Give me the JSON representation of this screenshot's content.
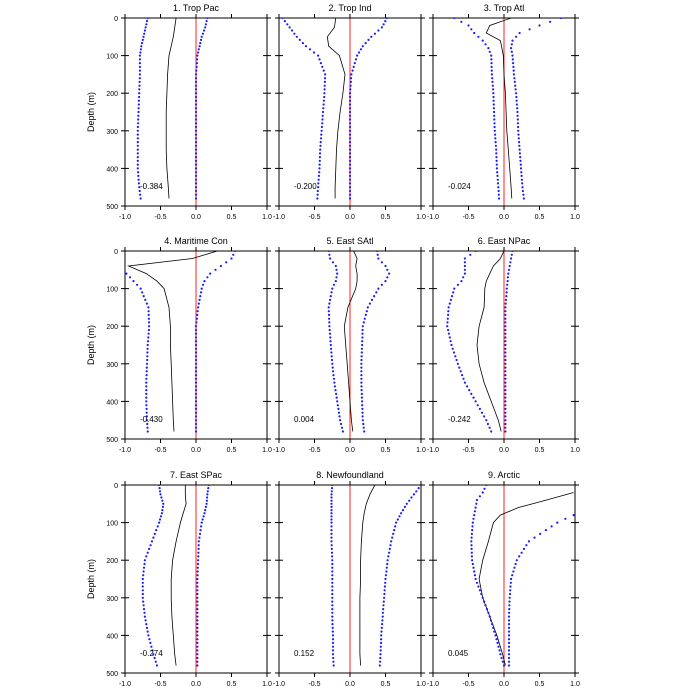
{
  "figure": {
    "ylabel": "Depth (m)",
    "xticks": [
      "-1.0",
      "-0.5",
      "0.0",
      "0.5",
      "1.0"
    ],
    "yticks": [
      "0",
      "100",
      "200",
      "300",
      "400",
      "500"
    ],
    "colors": {
      "mean_line": "#000000",
      "bounds_dots": "#1a1aff",
      "zero_line": "#ff2020"
    }
  },
  "chart_data": [
    {
      "type": "line",
      "title": "1. Trop Pac",
      "value_label": "-0.384",
      "xlim": [
        -1,
        1
      ],
      "ylim": [
        500,
        0
      ],
      "depth": [
        0,
        25,
        50,
        75,
        100,
        150,
        200,
        250,
        300,
        350,
        400,
        450,
        480
      ],
      "mean": [
        -0.28,
        -0.3,
        -0.32,
        -0.35,
        -0.38,
        -0.4,
        -0.41,
        -0.42,
        -0.42,
        -0.42,
        -0.41,
        -0.39,
        -0.38
      ],
      "lower": [
        -0.68,
        -0.71,
        -0.74,
        -0.77,
        -0.79,
        -0.79,
        -0.8,
        -0.81,
        -0.82,
        -0.82,
        -0.82,
        -0.8,
        -0.78
      ],
      "upper": [
        0.16,
        0.13,
        0.08,
        0.05,
        0.02,
        0.0,
        0.0,
        0.0,
        0.0,
        0.0,
        0.0,
        0.0,
        0.0
      ]
    },
    {
      "type": "line",
      "title": "2. Trop Ind",
      "value_label": "-0.200",
      "xlim": [
        -1,
        1
      ],
      "ylim": [
        500,
        0
      ],
      "depth": [
        0,
        25,
        50,
        75,
        100,
        150,
        200,
        250,
        300,
        350,
        400,
        450,
        480
      ],
      "mean": [
        -0.2,
        -0.22,
        -0.32,
        -0.3,
        -0.15,
        -0.07,
        -0.1,
        -0.14,
        -0.17,
        -0.19,
        -0.2,
        -0.21,
        -0.21
      ],
      "lower": [
        -0.95,
        -0.85,
        -0.75,
        -0.62,
        -0.45,
        -0.35,
        -0.36,
        -0.38,
        -0.4,
        -0.42,
        -0.43,
        -0.45,
        -0.46
      ],
      "upper": [
        0.52,
        0.45,
        0.3,
        0.18,
        0.1,
        0.02,
        0.0,
        0.0,
        0.0,
        0.0,
        0.0,
        0.0,
        0.0
      ]
    },
    {
      "type": "line",
      "title": "3. Trop Atl",
      "value_label": "-0.024",
      "xlim": [
        -1,
        1
      ],
      "ylim": [
        500,
        0
      ],
      "depth": [
        0,
        20,
        40,
        60,
        80,
        100,
        150,
        200,
        250,
        300,
        350,
        400,
        450,
        480
      ],
      "mean": [
        0.1,
        -0.2,
        -0.25,
        -0.05,
        -0.03,
        -0.01,
        0.0,
        0.02,
        0.03,
        0.04,
        0.06,
        0.08,
        0.1,
        0.11
      ],
      "lower": [
        -0.7,
        -0.5,
        -0.42,
        -0.3,
        -0.22,
        -0.18,
        -0.17,
        -0.15,
        -0.14,
        -0.13,
        -0.11,
        -0.1,
        -0.08,
        -0.07
      ],
      "upper": [
        0.8,
        0.5,
        0.22,
        0.12,
        0.1,
        0.12,
        0.14,
        0.17,
        0.19,
        0.2,
        0.22,
        0.24,
        0.26,
        0.28
      ]
    },
    {
      "type": "line",
      "title": "4. Maritime Con",
      "value_label": "-0.430",
      "xlim": [
        -1,
        1
      ],
      "ylim": [
        500,
        0
      ],
      "depth": [
        0,
        20,
        40,
        60,
        80,
        100,
        150,
        200,
        250,
        300,
        350,
        400,
        450,
        480
      ],
      "mean": [
        0.3,
        -0.05,
        -0.95,
        -0.7,
        -0.55,
        -0.45,
        -0.38,
        -0.36,
        -0.36,
        -0.35,
        -0.34,
        -0.33,
        -0.32,
        -0.31
      ],
      "lower": [
        null,
        null,
        null,
        -0.98,
        -0.88,
        -0.78,
        -0.67,
        -0.66,
        -0.68,
        -0.69,
        -0.7,
        -0.7,
        -0.69,
        -0.68
      ],
      "upper": [
        0.55,
        0.5,
        0.35,
        0.2,
        0.12,
        0.08,
        0.03,
        0.0,
        0.0,
        0.0,
        0.0,
        0.0,
        0.0,
        0.0
      ]
    },
    {
      "type": "line",
      "title": "5. East SAtl",
      "value_label": "0.004",
      "xlim": [
        -1,
        1
      ],
      "ylim": [
        500,
        0
      ],
      "depth": [
        0,
        20,
        40,
        60,
        80,
        100,
        150,
        200,
        250,
        300,
        350,
        400,
        450,
        480
      ],
      "mean": [
        0.05,
        0.1,
        0.08,
        0.1,
        0.1,
        0.08,
        -0.03,
        -0.08,
        -0.06,
        -0.04,
        -0.02,
        0.0,
        0.02,
        0.04
      ],
      "lower": [
        -0.3,
        -0.28,
        -0.2,
        -0.18,
        -0.2,
        -0.25,
        -0.3,
        -0.29,
        -0.27,
        -0.25,
        -0.22,
        -0.18,
        -0.14,
        -0.1
      ],
      "upper": [
        0.38,
        0.4,
        0.5,
        0.55,
        0.5,
        0.4,
        0.25,
        0.18,
        0.17,
        0.16,
        0.16,
        0.17,
        0.18,
        0.2
      ]
    },
    {
      "type": "line",
      "title": "6. East NPac",
      "value_label": "-0.242",
      "xlim": [
        -1,
        1
      ],
      "ylim": [
        500,
        0
      ],
      "depth": [
        0,
        20,
        40,
        60,
        80,
        100,
        150,
        200,
        250,
        300,
        350,
        400,
        450,
        480
      ],
      "mean": [
        0.0,
        -0.05,
        -0.15,
        -0.2,
        -0.25,
        -0.27,
        -0.28,
        -0.35,
        -0.38,
        -0.35,
        -0.28,
        -0.18,
        -0.08,
        -0.04
      ],
      "lower": [
        -0.4,
        -0.55,
        -0.55,
        -0.55,
        -0.6,
        -0.7,
        -0.78,
        -0.8,
        -0.74,
        -0.65,
        -0.55,
        -0.4,
        -0.25,
        -0.18
      ],
      "upper": [
        0.12,
        0.1,
        0.08,
        0.06,
        0.05,
        0.04,
        0.02,
        0.02,
        0.02,
        0.02,
        0.02,
        0.02,
        0.02,
        0.02
      ]
    },
    {
      "type": "line",
      "title": "7. East SPac",
      "value_label": "-0.274",
      "xlim": [
        -1,
        1
      ],
      "ylim": [
        500,
        0
      ],
      "depth": [
        0,
        25,
        50,
        75,
        100,
        150,
        200,
        250,
        300,
        350,
        400,
        450,
        480
      ],
      "mean": [
        -0.15,
        -0.15,
        -0.14,
        -0.18,
        -0.22,
        -0.28,
        -0.33,
        -0.35,
        -0.35,
        -0.34,
        -0.32,
        -0.3,
        -0.28
      ],
      "lower": [
        -0.52,
        -0.5,
        -0.46,
        -0.48,
        -0.52,
        -0.62,
        -0.72,
        -0.75,
        -0.75,
        -0.72,
        -0.67,
        -0.6,
        -0.55
      ],
      "upper": [
        0.18,
        0.16,
        0.15,
        0.12,
        0.08,
        0.04,
        0.03,
        0.02,
        0.02,
        0.02,
        0.02,
        0.02,
        0.02
      ]
    },
    {
      "type": "line",
      "title": "8. Newfoundland",
      "value_label": "0.152",
      "xlim": [
        -1,
        1
      ],
      "ylim": [
        500,
        0
      ],
      "depth": [
        0,
        25,
        50,
        75,
        100,
        150,
        200,
        250,
        300,
        350,
        400,
        450,
        480
      ],
      "mean": [
        0.35,
        0.28,
        0.23,
        0.2,
        0.18,
        0.16,
        0.15,
        0.15,
        0.14,
        0.14,
        0.14,
        0.14,
        0.15
      ],
      "lower": [
        -0.25,
        -0.26,
        -0.26,
        -0.26,
        -0.26,
        -0.26,
        -0.25,
        -0.25,
        -0.25,
        -0.25,
        -0.24,
        -0.24,
        -0.23
      ],
      "upper": [
        1.0,
        0.9,
        0.8,
        0.72,
        0.65,
        0.58,
        0.53,
        0.5,
        0.48,
        0.46,
        0.44,
        0.43,
        0.42
      ]
    },
    {
      "type": "line",
      "title": "9. Arctic",
      "value_label": "0.045",
      "xlim": [
        -1,
        1
      ],
      "ylim": [
        500,
        0
      ],
      "depth": [
        0,
        20,
        40,
        60,
        80,
        100,
        150,
        200,
        250,
        300,
        350,
        400,
        450,
        480
      ],
      "mean": [
        null,
        0.98,
        0.6,
        0.2,
        -0.05,
        -0.15,
        -0.22,
        -0.3,
        -0.35,
        -0.3,
        -0.2,
        -0.1,
        -0.02,
        0.02
      ],
      "lower": [
        -0.25,
        -0.3,
        -0.38,
        -0.4,
        -0.42,
        -0.44,
        -0.46,
        -0.45,
        -0.4,
        -0.3,
        -0.2,
        -0.12,
        -0.05,
        0.0
      ],
      "upper": [
        null,
        null,
        null,
        null,
        0.98,
        0.75,
        0.35,
        0.18,
        0.1,
        0.08,
        0.07,
        0.07,
        0.07,
        0.07
      ]
    }
  ]
}
